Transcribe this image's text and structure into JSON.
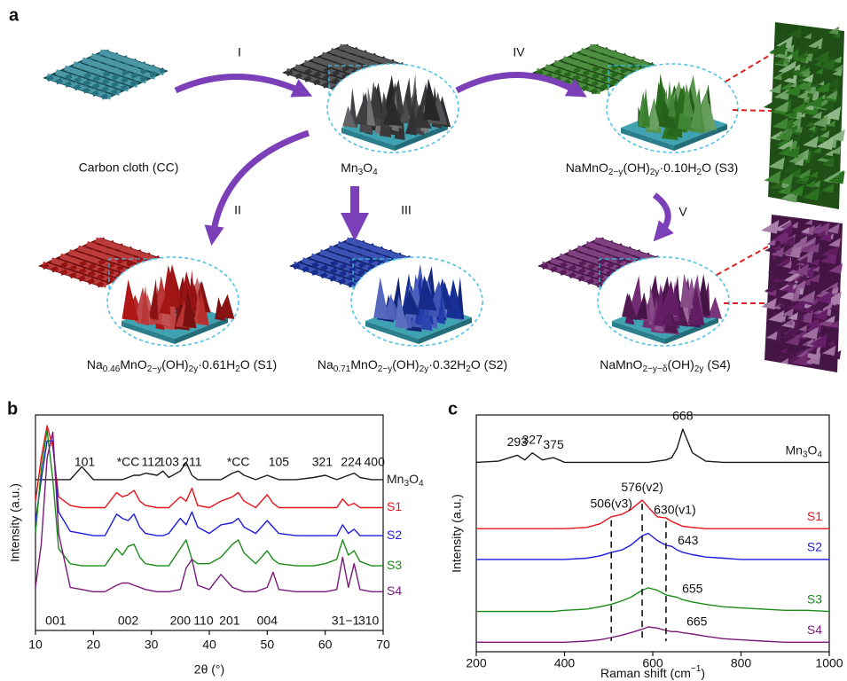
{
  "panel_a": {
    "panel_label": "a",
    "samples": [
      {
        "label": "Carbon cloth (CC)",
        "color": "#2b8595"
      },
      {
        "label": [
          {
            "t": "Mn"
          },
          {
            "sub": "3"
          },
          {
            "t": "O"
          },
          {
            "sub": "4"
          }
        ],
        "color": "#3b3b3e"
      },
      {
        "label": [
          {
            "t": "NaMnO"
          },
          {
            "sub": "2−y"
          },
          {
            "t": "(OH)"
          },
          {
            "sub": "2y"
          },
          {
            "t": "·0.10H"
          },
          {
            "sub": "2"
          },
          {
            "t": "O (S3)"
          }
        ],
        "color": "#2f7a22"
      },
      {
        "label": [
          {
            "t": "Na"
          },
          {
            "sub": "0.46"
          },
          {
            "t": "MnO"
          },
          {
            "sub": "2−y"
          },
          {
            "t": "(OH)"
          },
          {
            "sub": "2y"
          },
          {
            "t": "·0.61H"
          },
          {
            "sub": "2"
          },
          {
            "t": "O (S1)"
          }
        ],
        "color": "#b01818"
      },
      {
        "label": [
          {
            "t": "Na"
          },
          {
            "sub": "0.71"
          },
          {
            "t": "MnO"
          },
          {
            "sub": "2−y"
          },
          {
            "t": "(OH)"
          },
          {
            "sub": "2y"
          },
          {
            "t": "·0.32H"
          },
          {
            "sub": "2"
          },
          {
            "t": "O (S2)"
          }
        ],
        "color": "#1a35a8"
      },
      {
        "label": [
          {
            "t": "NaMnO"
          },
          {
            "sub": "2−y−δ"
          },
          {
            "t": "(OH)"
          },
          {
            "sub": "2y"
          },
          {
            "t": " (S4)"
          }
        ],
        "color": "#6a206b"
      }
    ],
    "steps": [
      "I",
      "II",
      "III",
      "IV",
      "V"
    ],
    "arrow_color": "#7b3fb8"
  },
  "chart_data": [
    {
      "type": "line",
      "panel_label": "b",
      "xlabel": "2θ (°)",
      "ylabel": "Intensity (a.u.)",
      "x": [
        10,
        11,
        12,
        13,
        14,
        16,
        18,
        20,
        22,
        24,
        25,
        26,
        27,
        28,
        29,
        31,
        32,
        33,
        35,
        36,
        37,
        38,
        40,
        42,
        44,
        45,
        46,
        48,
        50,
        51,
        52,
        55,
        58,
        60,
        62,
        63,
        64,
        65,
        66,
        68,
        70
      ],
      "xlim": [
        10,
        70
      ],
      "xticks": [
        10,
        20,
        30,
        40,
        50,
        60,
        70
      ],
      "ylim": [
        0,
        100
      ],
      "series": [
        {
          "name": [
            {
              "t": "Mn"
            },
            {
              "sub": "3"
            },
            {
              "t": "O"
            },
            {
              "sub": "4"
            }
          ],
          "color": "#1a1a1a",
          "values": [
            70,
            70,
            70,
            70,
            70,
            70,
            76,
            70,
            70,
            70,
            70,
            71,
            72,
            72,
            73,
            72,
            74,
            71,
            74,
            78,
            72,
            70,
            70,
            70,
            73,
            74,
            72,
            70,
            72,
            71,
            70,
            70,
            71,
            72,
            70,
            71,
            72,
            73,
            71,
            70,
            70
          ]
        },
        {
          "name": "S1",
          "color": "#e8141b",
          "values": [
            60,
            80,
            95,
            85,
            62,
            58,
            57,
            57,
            57,
            64,
            62,
            63,
            65,
            60,
            58,
            57,
            57,
            57,
            62,
            60,
            66,
            58,
            57,
            60,
            62,
            64,
            60,
            57,
            63,
            59,
            57,
            57,
            57,
            57,
            57,
            61,
            58,
            59,
            57,
            57,
            57
          ]
        },
        {
          "name": "S2",
          "color": "#1c1ce0",
          "values": [
            50,
            70,
            88,
            88,
            55,
            46,
            45,
            44,
            44,
            54,
            52,
            51,
            54,
            48,
            45,
            44,
            44,
            45,
            52,
            49,
            55,
            48,
            45,
            49,
            50,
            52,
            48,
            45,
            51,
            48,
            45,
            44,
            44,
            44,
            44,
            49,
            45,
            47,
            44,
            44,
            44
          ]
        },
        {
          "name": "S3",
          "color": "#1a8c1a",
          "values": [
            45,
            75,
            93,
            70,
            38,
            31,
            30,
            30,
            30,
            38,
            35,
            39,
            40,
            34,
            31,
            30,
            30,
            30,
            38,
            42,
            33,
            31,
            31,
            34,
            40,
            42,
            36,
            31,
            37,
            33,
            31,
            30,
            30,
            31,
            33,
            42,
            35,
            37,
            32,
            30,
            30
          ]
        },
        {
          "name": "S4",
          "color": "#7a1a7a",
          "values": [
            20,
            40,
            80,
            92,
            45,
            20,
            19,
            18,
            18,
            21,
            22,
            22,
            21,
            20,
            19,
            18,
            18,
            18,
            19,
            29,
            33,
            21,
            19,
            26,
            20,
            19,
            18,
            18,
            20,
            27,
            19,
            18,
            18,
            18,
            19,
            34,
            20,
            31,
            19,
            18,
            18
          ]
        }
      ],
      "annotations_top": [
        {
          "text": "101",
          "x": 18.5
        },
        {
          "text": "*CC",
          "x": 26
        },
        {
          "text": "112",
          "x": 30
        },
        {
          "text": "103",
          "x": 33
        },
        {
          "text": "211",
          "x": 37
        },
        {
          "text": "*CC",
          "x": 45
        },
        {
          "text": "105",
          "x": 52
        },
        {
          "text": "321",
          "x": 59.5
        },
        {
          "text": "224",
          "x": 64.5
        },
        {
          "text": "400",
          "x": 68.5
        }
      ],
      "annotations_bottom": [
        {
          "text": "001",
          "x": 13.5
        },
        {
          "text": "002",
          "x": 26
        },
        {
          "text": "200",
          "x": 35
        },
        {
          "text": "110",
          "x": 39
        },
        {
          "text": "201",
          "x": 43.5
        },
        {
          "text": "004",
          "x": 50
        },
        {
          "text": "31−1",
          "x": 63.5
        },
        {
          "text": "310",
          "x": 67.5
        }
      ]
    },
    {
      "type": "line",
      "panel_label": "c",
      "xlabel": [
        {
          "t": "Raman shift (cm"
        },
        {
          "sup": "−1"
        },
        {
          "t": ")"
        }
      ],
      "ylabel": "Intensity (a.u.)",
      "x": [
        200,
        250,
        293,
        310,
        327,
        350,
        375,
        400,
        450,
        480,
        506,
        530,
        550,
        576,
        590,
        610,
        630,
        643,
        655,
        668,
        690,
        720,
        760,
        800,
        850,
        900,
        950,
        1000
      ],
      "xlim": [
        200,
        1000
      ],
      "xticks": [
        200,
        400,
        600,
        800,
        1000
      ],
      "ylim": [
        0,
        100
      ],
      "series": [
        {
          "name": [
            {
              "t": "Mn"
            },
            {
              "sub": "3"
            },
            {
              "t": "O"
            },
            {
              "sub": "4"
            }
          ],
          "color": "#1a1a1a",
          "values": [
            80,
            80.5,
            83,
            81,
            84,
            81,
            82,
            80,
            80,
            80,
            80,
            80,
            80,
            80,
            80,
            80.5,
            81,
            82,
            86,
            94,
            84,
            80.5,
            80,
            80,
            80,
            80,
            80,
            80
          ]
        },
        {
          "name": "S1",
          "color": "#e8141b",
          "values": [
            52,
            52,
            52,
            52,
            52,
            52,
            52,
            52,
            52.5,
            54,
            57,
            58,
            60,
            64,
            61,
            57,
            56.5,
            55,
            54,
            53,
            52.5,
            52,
            52,
            52,
            52,
            52,
            52,
            52
          ]
        },
        {
          "name": "S2",
          "color": "#1c1ce0",
          "values": [
            39,
            39,
            39,
            39,
            39,
            39,
            39,
            39,
            39.5,
            40.5,
            42,
            43,
            45,
            49,
            50,
            47,
            45,
            44.5,
            43,
            42,
            41,
            40,
            39.5,
            39,
            39,
            39,
            39,
            39
          ]
        },
        {
          "name": "S3",
          "color": "#1a8c1a",
          "values": [
            17,
            17,
            17,
            17,
            17,
            17,
            17,
            17.5,
            18,
            19,
            20,
            21.5,
            23,
            26,
            27,
            26,
            24,
            23.5,
            23,
            22,
            21,
            20,
            19,
            18.5,
            18,
            17.5,
            17.5,
            17
          ]
        },
        {
          "name": "S4",
          "color": "#7a1a7a",
          "values": [
            4,
            4,
            4,
            4,
            4,
            4,
            4,
            4,
            4.5,
            5,
            6,
            7,
            8,
            9.5,
            10.5,
            10,
            9,
            8.5,
            8.5,
            8,
            7.5,
            6.5,
            5.5,
            5,
            4.5,
            4,
            4,
            4
          ]
        }
      ],
      "annotations": [
        {
          "text": "293",
          "x": 293,
          "series": 0
        },
        {
          "text": "327",
          "x": 327,
          "series": 0
        },
        {
          "text": "375",
          "x": 375,
          "series": 0
        },
        {
          "text": "668",
          "x": 668,
          "series": 0
        },
        {
          "text": "506(v3)",
          "x": 506,
          "series": 1
        },
        {
          "text": "576(v2)",
          "x": 576,
          "series": 1
        },
        {
          "text": "630(v1)",
          "x": 650,
          "series": 1
        },
        {
          "text": "643",
          "x": 680,
          "series": 2
        },
        {
          "text": "655",
          "x": 690,
          "series": 3
        },
        {
          "text": "665",
          "x": 700,
          "series": 4
        }
      ],
      "reference_lines": [
        506,
        576,
        630
      ]
    }
  ]
}
